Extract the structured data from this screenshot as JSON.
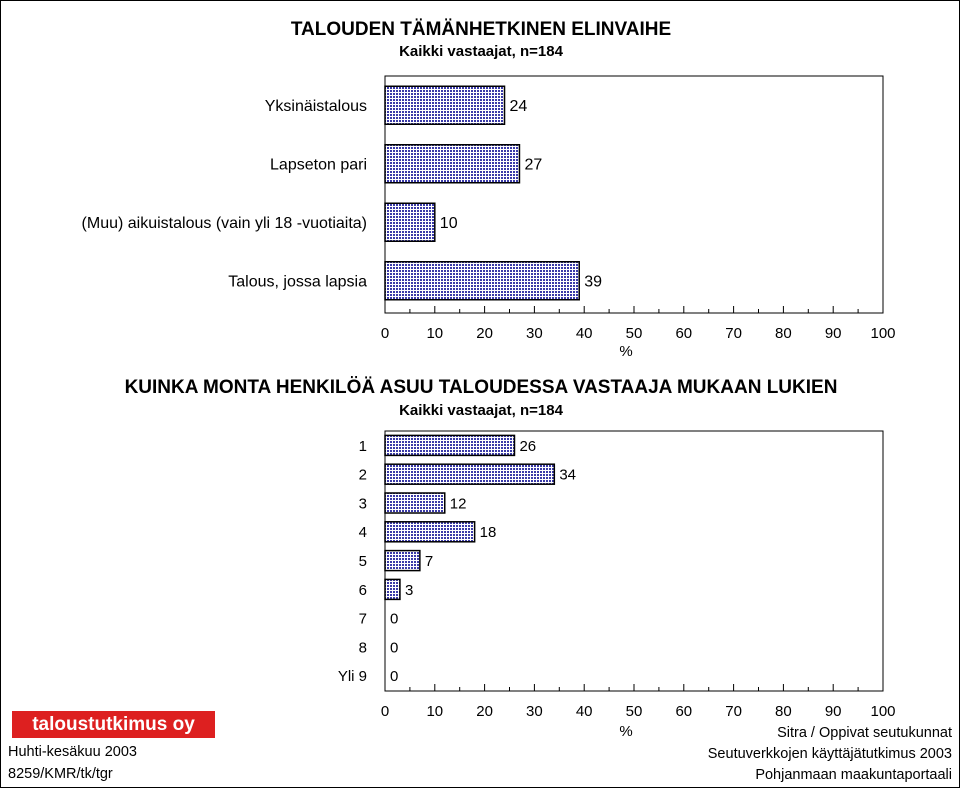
{
  "chart_data": [
    {
      "type": "bar",
      "orientation": "horizontal",
      "title": "TALOUDEN TÄMÄNHETKINEN ELINVAIHE",
      "subtitle": "Kaikki vastaajat, n=184",
      "categories": [
        "Yksinäistalous",
        "Lapseton pari",
        "(Muu) aikuistalous (vain yli 18 -vuotiaita)",
        "Talous, jossa lapsia"
      ],
      "values": [
        24,
        27,
        10,
        39
      ],
      "data_labels": [
        "24",
        "27",
        "10",
        "39"
      ],
      "xlabel": "%",
      "xlim": [
        0,
        100
      ],
      "xticks": [
        "0",
        "10",
        "20",
        "30",
        "40",
        "50",
        "60",
        "70",
        "80",
        "90",
        "100"
      ],
      "grid": false,
      "bar_color": "#3a3aa8"
    },
    {
      "type": "bar",
      "orientation": "horizontal",
      "title": "KUINKA MONTA HENKILÖÄ ASUU TALOUDESSA VASTAAJA MUKAAN LUKIEN",
      "subtitle": "Kaikki vastaajat, n=184",
      "categories": [
        "1",
        "2",
        "3",
        "4",
        "5",
        "6",
        "7",
        "8",
        "Yli 9"
      ],
      "values": [
        26,
        34,
        12,
        18,
        7,
        3,
        0,
        0,
        0
      ],
      "data_labels": [
        "26",
        "34",
        "12",
        "18",
        "7",
        "3",
        "0",
        "0",
        "0"
      ],
      "xlabel": "%",
      "xlim": [
        0,
        100
      ],
      "xticks": [
        "0",
        "10",
        "20",
        "30",
        "40",
        "50",
        "60",
        "70",
        "80",
        "90",
        "100"
      ],
      "grid": false,
      "bar_color": "#3a3aa8"
    }
  ],
  "logo_text": "taloustutkimus oy",
  "footer": {
    "left": [
      "Huhti-kesäkuu 2003",
      "8259/KMR/tk/tgr"
    ],
    "right": [
      "Sitra / Oppivat seutukunnat",
      "Seutuverkkojen käyttäjätutkimus 2003",
      "Pohjanmaan maakuntaportaali"
    ]
  }
}
